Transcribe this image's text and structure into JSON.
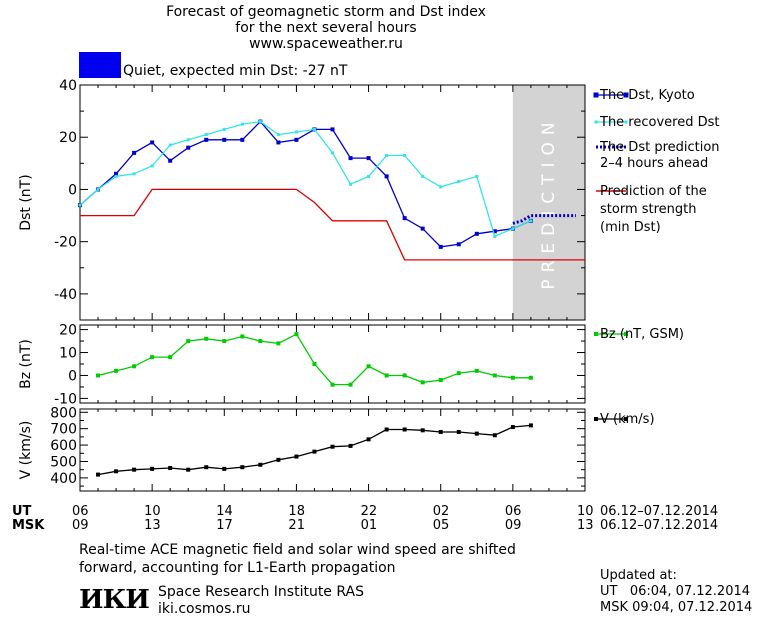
{
  "title": {
    "line1": "Forecast of geomagnetic storm and Dst index",
    "line2": "for the next several hours",
    "line3": "www.spaceweather.ru"
  },
  "status": {
    "text": "Quiet, expected min Dst: -27 nT",
    "color": "#0000ee"
  },
  "chart_data": [
    {
      "type": "line",
      "ylabel": "Dst (nT)",
      "ylim": [
        -50,
        40
      ],
      "yticks": [
        40,
        20,
        0,
        -20,
        -40
      ],
      "prediction_label": "PREDICTION",
      "series": [
        {
          "name": "The Dst, Kyoto",
          "color": "#0000cc",
          "x": [
            6,
            7,
            8,
            9,
            10,
            11,
            12,
            13,
            14,
            15,
            16,
            17,
            18,
            19,
            20,
            21,
            22,
            23,
            24,
            25,
            26,
            27,
            28,
            29,
            30,
            31
          ],
          "y": [
            -6,
            0,
            6,
            14,
            18,
            11,
            16,
            19,
            19,
            19,
            26,
            18,
            19,
            23,
            23,
            12,
            12,
            5,
            -11,
            -15,
            -22,
            -21,
            -17,
            -16,
            -15,
            -12
          ]
        },
        {
          "name": "The recovered Dst",
          "color": "#33e5e5",
          "x": [
            6,
            7,
            8,
            9,
            10,
            11,
            12,
            13,
            14,
            15,
            16,
            17,
            18,
            19,
            20,
            21,
            22,
            23,
            24,
            25,
            26,
            27,
            28,
            29,
            30,
            31
          ],
          "y": [
            -6,
            0,
            5,
            6,
            9,
            17,
            19,
            21,
            23,
            25,
            26,
            21,
            22,
            23,
            14,
            2,
            5,
            13,
            13,
            5,
            1,
            3,
            5,
            -18,
            -15,
            -12
          ]
        },
        {
          "name": "The Dst prediction 2-4 hours ahead",
          "color": "#0000cc",
          "dotted": true,
          "x": [
            30,
            30.5,
            31,
            31.5,
            32,
            32.5,
            33,
            33.5
          ],
          "y": [
            -13,
            -12,
            -10,
            -10,
            -10,
            -10,
            -10,
            -10
          ]
        },
        {
          "name": "Prediction of the storm strength (min Dst)",
          "color": "#dd0000",
          "x": [
            6,
            9,
            10,
            18,
            19,
            20,
            23,
            24,
            34
          ],
          "y": [
            -10,
            -10,
            0,
            0,
            -5,
            -12,
            -12,
            -27,
            -27
          ]
        }
      ]
    },
    {
      "type": "line",
      "ylabel": "Bz (nT)",
      "ylim": [
        -12,
        22
      ],
      "yticks": [
        20,
        10,
        0,
        -10
      ],
      "series": [
        {
          "name": "Bz (nT, GSM)",
          "color": "#00cc00",
          "x": [
            7,
            8,
            9,
            10,
            11,
            12,
            13,
            14,
            15,
            16,
            17,
            18,
            19,
            20,
            21,
            22,
            23,
            24,
            25,
            26,
            27,
            28,
            29,
            30,
            31
          ],
          "y": [
            0,
            2,
            4,
            8,
            8,
            15,
            16,
            15,
            17,
            15,
            14,
            18,
            5,
            -4,
            -4,
            4,
            0,
            0,
            -3,
            -2,
            1,
            2,
            0,
            -1,
            -1
          ]
        }
      ]
    },
    {
      "type": "line",
      "ylabel": "V (km/s)",
      "ylim": [
        320,
        820
      ],
      "yticks": [
        800,
        700,
        600,
        500,
        400
      ],
      "series": [
        {
          "name": "V (km/s)",
          "color": "#000000",
          "x": [
            7,
            8,
            9,
            10,
            11,
            12,
            13,
            14,
            15,
            16,
            17,
            18,
            19,
            20,
            21,
            22,
            23,
            24,
            25,
            26,
            27,
            28,
            29,
            30,
            31
          ],
          "y": [
            420,
            440,
            450,
            455,
            460,
            450,
            465,
            455,
            465,
            480,
            510,
            530,
            560,
            590,
            595,
            635,
            695,
            695,
            690,
            680,
            680,
            670,
            660,
            710,
            720
          ]
        }
      ]
    }
  ],
  "axis": {
    "ut_label": "UT",
    "msk_label": "MSK",
    "ut_ticks": [
      "06",
      "10",
      "14",
      "18",
      "22",
      "02",
      "06",
      "10"
    ],
    "msk_ticks": [
      "09",
      "13",
      "17",
      "21",
      "01",
      "05",
      "09",
      "13"
    ],
    "ut_range": "06.12–07.12.2014",
    "msk_range": "06.12–07.12.2014"
  },
  "legend": {
    "dst_kyoto": "The Dst, Kyoto",
    "recovered": "The recovered Dst",
    "prediction_l1": "The Dst prediction",
    "prediction_l2": "2–4 hours ahead",
    "strength_l1": "Prediction of the",
    "strength_l2": "storm strength",
    "strength_l3": "(min Dst)",
    "bz": "Bz (nT, GSM)",
    "v": "V (km/s)"
  },
  "footnote": {
    "line1": "Real-time ACE magnetic field and solar wind speed are shifted",
    "line2": "forward, accounting for L1-Earth propagation"
  },
  "institute": {
    "logo": "ИКИ",
    "name": "Space Research Institute RAS",
    "site": "iki.cosmos.ru"
  },
  "updated": {
    "label": "Updated at:",
    "ut": "UT   06:04, 07.12.2014",
    "msk": "MSK 09:04, 07.12.2014"
  }
}
